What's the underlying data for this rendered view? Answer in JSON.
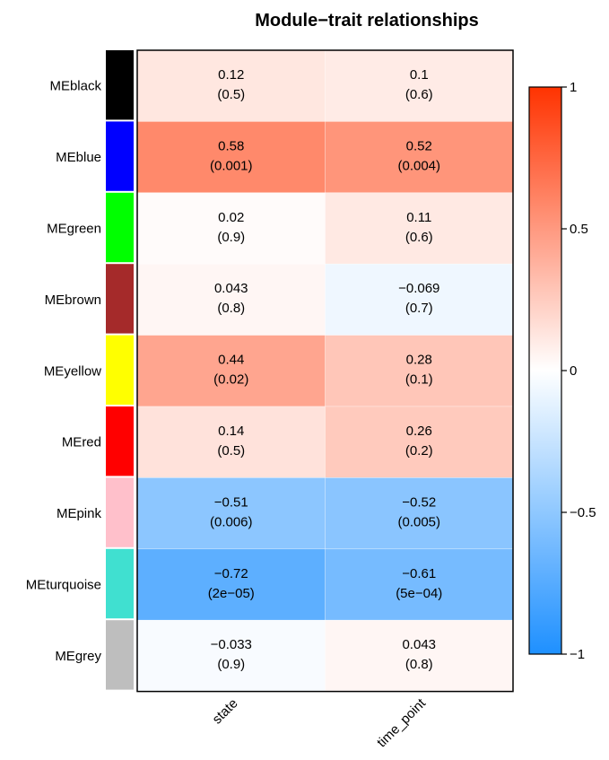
{
  "chart_data": {
    "type": "heatmap",
    "title": "Module−trait relationships",
    "columns": [
      "state",
      "time_point"
    ],
    "rows": [
      {
        "label": "MEblack",
        "module_color": "#000000",
        "cells": [
          {
            "r": 0.12,
            "r_text": "0.12",
            "p_text": "(0.5)"
          },
          {
            "r": 0.1,
            "r_text": "0.1",
            "p_text": "(0.6)"
          }
        ]
      },
      {
        "label": "MEblue",
        "module_color": "#0000ff",
        "cells": [
          {
            "r": 0.58,
            "r_text": "0.58",
            "p_text": "(0.001)"
          },
          {
            "r": 0.52,
            "r_text": "0.52",
            "p_text": "(0.004)"
          }
        ]
      },
      {
        "label": "MEgreen",
        "module_color": "#00ff00",
        "cells": [
          {
            "r": 0.02,
            "r_text": "0.02",
            "p_text": "(0.9)"
          },
          {
            "r": 0.11,
            "r_text": "0.11",
            "p_text": "(0.6)"
          }
        ]
      },
      {
        "label": "MEbrown",
        "module_color": "#a52a2a",
        "cells": [
          {
            "r": 0.043,
            "r_text": "0.043",
            "p_text": "(0.8)"
          },
          {
            "r": -0.069,
            "r_text": "−0.069",
            "p_text": "(0.7)"
          }
        ]
      },
      {
        "label": "MEyellow",
        "module_color": "#ffff00",
        "cells": [
          {
            "r": 0.44,
            "r_text": "0.44",
            "p_text": "(0.02)"
          },
          {
            "r": 0.28,
            "r_text": "0.28",
            "p_text": "(0.1)"
          }
        ]
      },
      {
        "label": "MEred",
        "module_color": "#ff0000",
        "cells": [
          {
            "r": 0.14,
            "r_text": "0.14",
            "p_text": "(0.5)"
          },
          {
            "r": 0.26,
            "r_text": "0.26",
            "p_text": "(0.2)"
          }
        ]
      },
      {
        "label": "MEpink",
        "module_color": "#ffc0cb",
        "cells": [
          {
            "r": -0.51,
            "r_text": "−0.51",
            "p_text": "(0.006)"
          },
          {
            "r": -0.52,
            "r_text": "−0.52",
            "p_text": "(0.005)"
          }
        ]
      },
      {
        "label": "MEturquoise",
        "module_color": "#40e0d0",
        "cells": [
          {
            "r": -0.72,
            "r_text": "−0.72",
            "p_text": "(2e−05)"
          },
          {
            "r": -0.61,
            "r_text": "−0.61",
            "p_text": "(5e−04)"
          }
        ]
      },
      {
        "label": "MEgrey",
        "module_color": "#bebebe",
        "cells": [
          {
            "r": -0.033,
            "r_text": "−0.033",
            "p_text": "(0.9)"
          },
          {
            "r": 0.043,
            "r_text": "0.043",
            "p_text": "(0.8)"
          }
        ]
      }
    ],
    "colorbar": {
      "range": [
        -1,
        1
      ],
      "ticks": [
        {
          "value": 1,
          "label": "1"
        },
        {
          "value": 0.5,
          "label": "0.5"
        },
        {
          "value": 0,
          "label": "0"
        },
        {
          "value": -0.5,
          "label": "−0.5"
        },
        {
          "value": -1,
          "label": "−1"
        }
      ],
      "colors": {
        "negative": "#1e90ff",
        "zero": "#ffffff",
        "positive": "#ff3300"
      }
    }
  }
}
